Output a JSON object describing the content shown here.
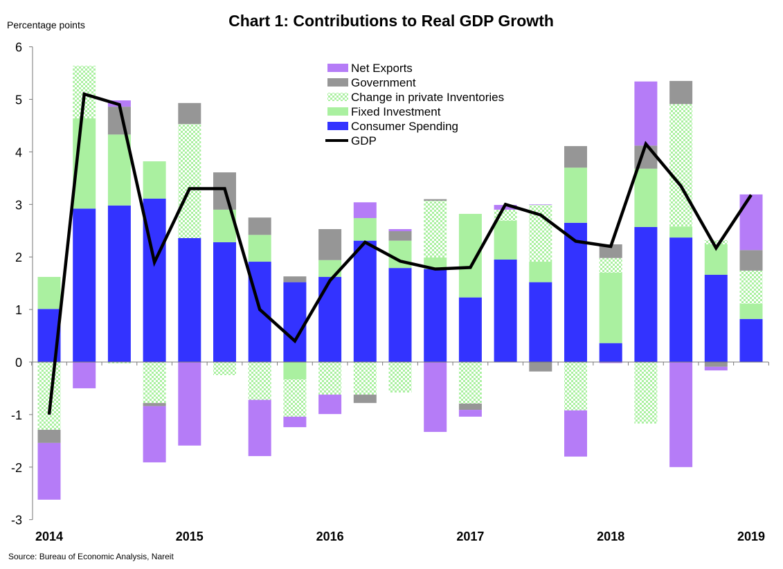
{
  "chart_data": {
    "type": "bar",
    "stacked": true,
    "title": "Chart 1: Contributions to Real GDP Growth",
    "ylabel": "Percentage points",
    "source": "Source:  Bureau of Economic Analysis, Nareit",
    "ylim": [
      -3,
      6
    ],
    "yticks": [
      -3,
      -2,
      -1,
      0,
      1,
      2,
      3,
      4,
      5,
      6
    ],
    "grid": false,
    "legend_position": "top-center",
    "x_tick_labels": [
      "2014",
      "2015",
      "2016",
      "2017",
      "2018",
      "2019"
    ],
    "categories": [
      "2014Q1",
      "2014Q2",
      "2014Q3",
      "2014Q4",
      "2015Q1",
      "2015Q2",
      "2015Q3",
      "2015Q4",
      "2016Q1",
      "2016Q2",
      "2016Q3",
      "2016Q4",
      "2017Q1",
      "2017Q2",
      "2017Q3",
      "2017Q4",
      "2018Q1",
      "2018Q2",
      "2018Q3",
      "2018Q4",
      "2019Q1"
    ],
    "series": [
      {
        "name": "Consumer Spending",
        "color": "#3333ff",
        "pattern": "solid",
        "values": [
          1.01,
          2.92,
          2.98,
          3.11,
          2.36,
          2.28,
          1.91,
          1.52,
          1.62,
          2.31,
          1.79,
          1.77,
          1.23,
          1.95,
          1.52,
          2.65,
          0.36,
          2.57,
          2.37,
          1.66,
          0.82
        ]
      },
      {
        "name": "Fixed Investment",
        "color": "#aaf0a0",
        "pattern": "solid",
        "values": [
          0.61,
          1.72,
          1.35,
          0.71,
          0.0,
          0.62,
          0.51,
          -0.33,
          0.32,
          0.43,
          0.52,
          0.22,
          1.59,
          0.74,
          0.39,
          1.05,
          1.34,
          1.11,
          0.21,
          0.58,
          0.29
        ]
      },
      {
        "name": "Change in private Inventories",
        "color": "#aaf0a0",
        "pattern": "checker",
        "values": [
          -1.29,
          1.0,
          -0.03,
          -0.78,
          2.17,
          -0.25,
          -0.72,
          -0.71,
          -0.62,
          -0.62,
          -0.58,
          1.08,
          -0.79,
          0.21,
          1.08,
          -0.92,
          0.28,
          -1.17,
          2.33,
          0.08,
          0.63
        ]
      },
      {
        "name": "Government",
        "color": "#969696",
        "pattern": "solid",
        "values": [
          -0.25,
          0.0,
          0.53,
          -0.06,
          0.4,
          0.71,
          0.33,
          0.11,
          0.59,
          -0.16,
          0.18,
          0.03,
          -0.12,
          0.0,
          -0.18,
          0.41,
          0.26,
          0.44,
          0.44,
          -0.09,
          0.39
        ]
      },
      {
        "name": "Net Exports",
        "color": "#b57cf7",
        "pattern": "solid",
        "values": [
          -1.08,
          -0.5,
          0.12,
          -1.07,
          -1.59,
          0.0,
          -1.07,
          -0.2,
          -0.37,
          0.3,
          0.04,
          -1.33,
          -0.13,
          0.09,
          0.01,
          -0.88,
          -0.02,
          1.22,
          -2.0,
          -0.07,
          1.06
        ]
      },
      {
        "name": "GDP",
        "type": "line",
        "color": "#000000",
        "values": [
          -1.0,
          5.1,
          4.9,
          1.9,
          3.3,
          3.3,
          1.0,
          0.4,
          1.55,
          2.28,
          1.92,
          1.77,
          1.8,
          3.0,
          2.8,
          2.3,
          2.2,
          4.15,
          3.35,
          2.17,
          3.18
        ]
      }
    ]
  }
}
